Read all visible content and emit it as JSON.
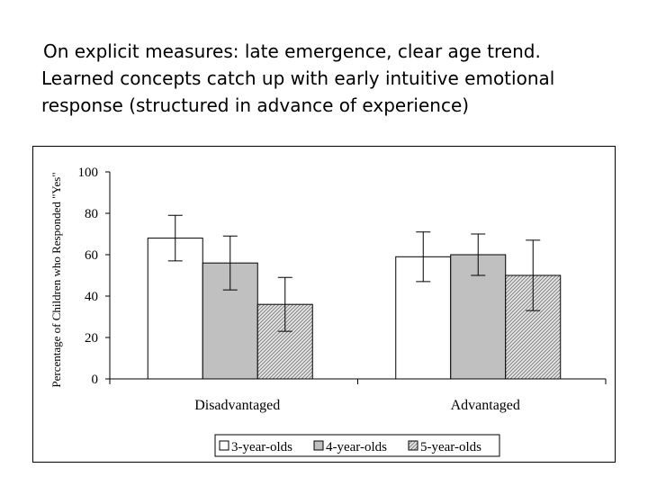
{
  "slide": {
    "lines": [
      "On explicit measures: late emergence, clear age trend.",
      "Learned concepts catch up with early intuitive emotional",
      "response (structured in advance of experience)"
    ]
  },
  "chart_data": {
    "type": "bar",
    "title": "",
    "xlabel": "",
    "ylabel": "Percentage of Children who Responded \"Yes\"",
    "ylim": [
      0,
      100
    ],
    "yticks": [
      0,
      20,
      40,
      60,
      80,
      100
    ],
    "categories": [
      "Disadvantaged",
      "Advantaged"
    ],
    "series": [
      {
        "name": "3-year-olds",
        "values": [
          68,
          59
        ],
        "error": [
          11,
          12
        ],
        "fill": "#ffffff",
        "pattern": "none"
      },
      {
        "name": "4-year-olds",
        "values": [
          56,
          60
        ],
        "error": [
          13,
          10
        ],
        "fill": "#c0c0c0",
        "pattern": "none"
      },
      {
        "name": "5-year-olds",
        "values": [
          36,
          50
        ],
        "error": [
          13,
          17
        ],
        "fill": "#dcdcdc",
        "pattern": "hatch"
      }
    ],
    "legend_position": "bottom",
    "grid": false,
    "colors": {
      "axis": "#000000",
      "bar_border": "#000000"
    }
  }
}
